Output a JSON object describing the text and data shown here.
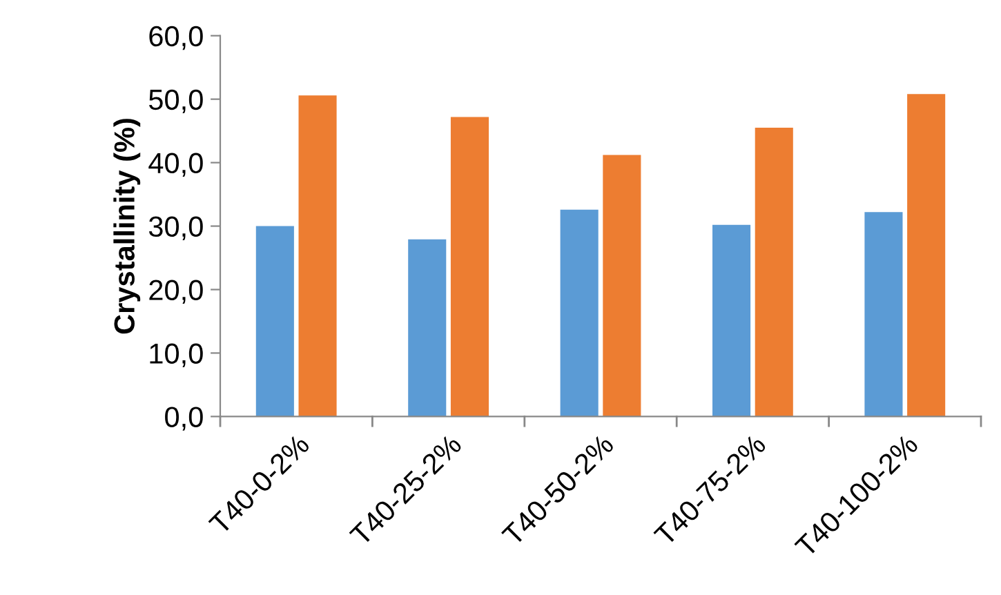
{
  "chart_data": {
    "type": "bar",
    "ylabel": "Crystallinity (%)",
    "categories": [
      "T40-0-2%",
      "T40-25-2%",
      "T40-50-2%",
      "T40-75-2%",
      "T40-100-2%"
    ],
    "series": [
      {
        "color": "#5b9bd5",
        "values": [
          30.0,
          27.9,
          32.6,
          30.2,
          32.2
        ]
      },
      {
        "color": "#ed7d31",
        "values": [
          50.6,
          47.2,
          41.2,
          45.5,
          50.8
        ]
      }
    ],
    "ylim": [
      0,
      60
    ],
    "yticks": [
      {
        "value": 0,
        "label": "0,0"
      },
      {
        "value": 10,
        "label": "10,0"
      },
      {
        "value": 20,
        "label": "20,0"
      },
      {
        "value": 30,
        "label": "30,0"
      },
      {
        "value": 40,
        "label": "40,0"
      },
      {
        "value": 50,
        "label": "50,0"
      },
      {
        "value": 60,
        "label": "60,0"
      }
    ],
    "grid": false,
    "legend": false
  }
}
